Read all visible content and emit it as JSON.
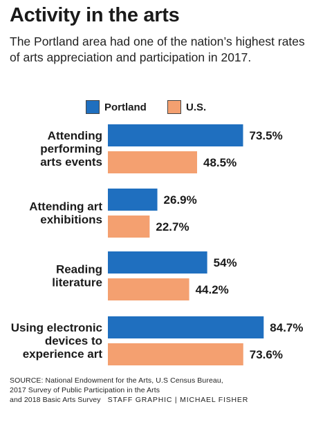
{
  "title": "Activity in the arts",
  "subtitle": "The Portland area had one of the nation’s highest rates of arts appreciation and participation in 2017.",
  "colors": {
    "portland": "#1f6fbf",
    "us": "#f4a070"
  },
  "legend": [
    {
      "label": "Portland",
      "color": "#1f6fbf"
    },
    {
      "label": "U.S.",
      "color": "#f4a070"
    }
  ],
  "chart_data": {
    "type": "bar",
    "orientation": "horizontal",
    "categories": [
      [
        "Attending",
        "performing",
        "arts events"
      ],
      [
        "Attending art",
        "exhibitions"
      ],
      [
        "Reading",
        "literature"
      ],
      [
        "Using electronic",
        "devices to",
        "experience art"
      ]
    ],
    "series": [
      {
        "name": "Portland",
        "values": [
          73.5,
          26.9,
          54,
          84.7
        ],
        "labels": [
          "73.5%",
          "26.9%",
          "54%",
          "84.7%"
        ]
      },
      {
        "name": "U.S.",
        "values": [
          48.5,
          22.7,
          44.2,
          73.6
        ],
        "labels": [
          "48.5%",
          "22.7%",
          "44.2%",
          "73.6%"
        ]
      }
    ],
    "xlim": [
      0,
      100
    ],
    "grid": false,
    "legend_position": "top"
  },
  "source": {
    "lines": [
      "SOURCE: National Endowment for the Arts, U.S Census Bureau,",
      "2017 Survey of Public Participation in the Arts",
      "and 2018 Basic Arts Survey"
    ],
    "credit": "STAFF GRAPHIC | MICHAEL FISHER"
  }
}
